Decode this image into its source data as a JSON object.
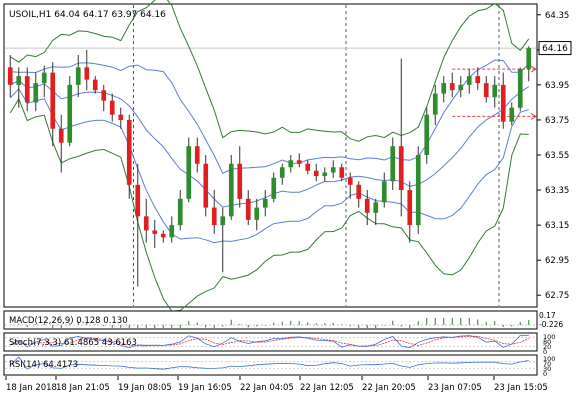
{
  "header": {
    "symbol_line": "USOIL,H1  64.04 64.17 63.97 64.16"
  },
  "colors": {
    "bull": "#2e8b2e",
    "bear": "#e02020",
    "band_outer": "#2f7d2f",
    "band_inner": "#5b7fd6",
    "price_tag_bg": "#ffffff",
    "guide": "#e04040"
  },
  "chart_data": [
    {
      "type": "candlestick",
      "name": "main",
      "ylim": [
        62.7,
        64.4
      ],
      "y_ticks": [
        "64.35",
        "64.15",
        "63.95",
        "63.75",
        "63.55",
        "63.35",
        "63.15",
        "62.95",
        "62.75"
      ],
      "current_price_label": "64.16",
      "current_price": 64.16,
      "guide_levels": [
        64.04,
        63.77
      ],
      "x_labels": [
        "18 Jan 2018",
        "18 Jan 21:05",
        "19 Jan 08:05",
        "19 Jan 16:05",
        "22 Jan 04:05",
        "22 Jan 12:05",
        "22 Jan 20:05",
        "23 Jan 07:05",
        "23 Jan 15:05"
      ],
      "candles": [
        [
          64.05,
          64.12,
          63.88,
          63.95
        ],
        [
          63.95,
          64.05,
          63.82,
          64.0
        ],
        [
          64.0,
          64.05,
          63.8,
          63.85
        ],
        [
          63.85,
          64.02,
          63.8,
          63.96
        ],
        [
          63.96,
          64.06,
          63.88,
          64.02
        ],
        [
          64.02,
          64.08,
          63.6,
          63.7
        ],
        [
          63.7,
          63.78,
          63.45,
          63.62
        ],
        [
          63.62,
          64.0,
          63.6,
          63.95
        ],
        [
          63.95,
          64.12,
          63.88,
          64.05
        ],
        [
          64.05,
          64.15,
          63.92,
          63.98
        ],
        [
          63.98,
          64.0,
          63.9,
          63.92
        ],
        [
          63.92,
          63.95,
          63.8,
          63.86
        ],
        [
          63.86,
          63.9,
          63.74,
          63.78
        ],
        [
          63.78,
          63.82,
          63.7,
          63.75
        ],
        [
          63.75,
          63.78,
          63.3,
          63.38
        ],
        [
          63.38,
          63.5,
          62.8,
          63.2
        ],
        [
          63.2,
          63.3,
          63.05,
          63.12
        ],
        [
          63.12,
          63.18,
          63.02,
          63.1
        ],
        [
          63.1,
          63.12,
          63.05,
          63.08
        ],
        [
          63.08,
          63.2,
          63.05,
          63.15
        ],
        [
          63.15,
          63.35,
          63.12,
          63.3
        ],
        [
          63.3,
          63.65,
          63.28,
          63.6
        ],
        [
          63.6,
          63.65,
          63.45,
          63.5
        ],
        [
          63.5,
          63.55,
          63.2,
          63.25
        ],
        [
          63.25,
          63.35,
          63.1,
          63.15
        ],
        [
          63.15,
          63.25,
          62.88,
          63.2
        ],
        [
          63.2,
          63.55,
          63.18,
          63.5
        ],
        [
          63.5,
          63.6,
          63.25,
          63.3
        ],
        [
          63.3,
          63.35,
          63.15,
          63.18
        ],
        [
          63.18,
          63.3,
          63.12,
          63.25
        ],
        [
          63.25,
          63.35,
          63.2,
          63.3
        ],
        [
          63.3,
          63.45,
          63.28,
          63.42
        ],
        [
          63.42,
          63.5,
          63.38,
          63.48
        ],
        [
          63.48,
          63.55,
          63.45,
          63.52
        ],
        [
          63.52,
          63.56,
          63.48,
          63.5
        ],
        [
          63.5,
          63.52,
          63.44,
          63.46
        ],
        [
          63.46,
          63.5,
          63.4,
          63.43
        ],
        [
          63.43,
          63.48,
          63.4,
          63.45
        ],
        [
          63.45,
          63.52,
          63.42,
          63.48
        ],
        [
          63.48,
          63.5,
          63.4,
          63.42
        ],
        [
          63.42,
          63.45,
          63.3,
          63.38
        ],
        [
          63.38,
          63.4,
          63.25,
          63.3
        ],
        [
          63.3,
          63.35,
          63.15,
          63.22
        ],
        [
          63.22,
          63.3,
          63.15,
          63.28
        ],
        [
          63.28,
          63.45,
          63.25,
          63.4
        ],
        [
          63.4,
          63.65,
          63.35,
          63.6
        ],
        [
          63.6,
          64.1,
          63.2,
          63.35
        ],
        [
          63.35,
          63.4,
          63.05,
          63.15
        ],
        [
          63.15,
          63.6,
          63.1,
          63.55
        ],
        [
          63.55,
          63.82,
          63.5,
          63.78
        ],
        [
          63.78,
          63.95,
          63.72,
          63.9
        ],
        [
          63.9,
          64.0,
          63.85,
          63.96
        ],
        [
          63.96,
          64.02,
          63.88,
          63.92
        ],
        [
          63.92,
          64.0,
          63.88,
          63.95
        ],
        [
          63.95,
          64.04,
          63.9,
          64.0
        ],
        [
          64.0,
          64.05,
          63.92,
          63.96
        ],
        [
          63.96,
          64.0,
          63.85,
          63.88
        ],
        [
          63.88,
          64.0,
          63.82,
          63.95
        ],
        [
          63.95,
          64.02,
          63.7,
          63.74
        ],
        [
          63.74,
          63.85,
          63.72,
          63.82
        ],
        [
          63.82,
          64.05,
          63.8,
          64.04
        ],
        [
          64.04,
          64.17,
          63.97,
          64.16
        ]
      ]
    },
    {
      "type": "bar",
      "name": "macd",
      "label": "MACD(12,26,9) 0.128 0.130",
      "right_labels": [
        "0.17",
        "-0.226"
      ]
    },
    {
      "type": "line",
      "name": "stoch",
      "label": "Stoch(7,3,3) 61.4865 43.6163",
      "right_labels": [
        "100",
        "80",
        "20",
        "0"
      ]
    },
    {
      "type": "line",
      "name": "rsi",
      "label": "RSI(14) 64.4173",
      "right_labels": [
        "100",
        "70",
        "30",
        "0"
      ]
    }
  ]
}
